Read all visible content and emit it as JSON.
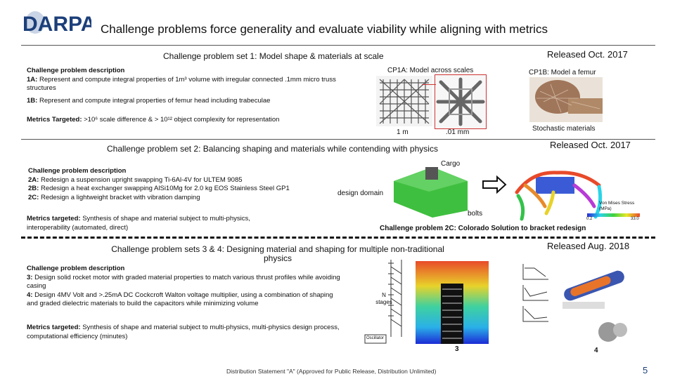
{
  "header": {
    "logo_text": "DARPA",
    "title": "Challenge problems force generality and evaluate viability while aligning with metrics"
  },
  "set1": {
    "heading": "Challenge problem set 1: Model shape & materials at scale",
    "released": "Released Oct. 2017",
    "desc_label": "Challenge problem description",
    "item_1a_label": "1A:",
    "item_1a_text": "Represent and compute integral properties of 1m³ volume with irregular connected .1mm micro truss structures",
    "item_1b_label": "1B:",
    "item_1b_text": "Represent and compute integral properties of femur head including trabeculae",
    "metrics_label": "Metrics Targeted:",
    "metrics_text": ">10⁶ scale difference & > 10¹² object complexity for representation",
    "cp1a_caption": "CP1A: Model across scales",
    "cp1b_caption": "CP1B: Model a femur",
    "scale_1m": "1 m",
    "scale_01mm": ".01 mm",
    "stochastic": "Stochastic materials"
  },
  "set2": {
    "heading": "Challenge problem set 2: Balancing shaping and materials while contending with physics",
    "released": "Released Oct. 2017",
    "desc_label": "Challenge problem description",
    "item_2a_label": "2A:",
    "item_2a_text": "Redesign a suspension upright swapping Ti-6Al-4V for ULTEM 9085",
    "item_2b_label": "2B:",
    "item_2b_text": "Redesign a heat exchanger swapping AlSi10Mg for 2.0 kg EOS Stainless Steel GP1",
    "item_2c_label": "2C:",
    "item_2c_text": "Redesign a lightweight bracket with vibration damping",
    "metrics_label": "Metrics targeted:",
    "metrics_text": "Synthesis of shape and material subject to multi-physics, interoperability (automated, direct)",
    "cargo": "Cargo",
    "design_domain": "design domain",
    "bolts": "bolts",
    "cp2c_caption": "Challenge problem 2C: Colorado Solution to bracket redesign",
    "von_mises": "Von Mises Stress (MPa)",
    "cbar_min": "0.2",
    "cbar_max": "33.0"
  },
  "set34": {
    "heading": "Challenge problem sets 3 & 4: Designing material and shaping for multiple non-traditional physics",
    "released": "Released Aug. 2018",
    "desc_label": "Challenge problem description",
    "item_3_label": "3:",
    "item_3_text": "Design solid rocket motor with graded material properties to match various thrust profiles while avoiding casing",
    "item_4_label": "4:",
    "item_4_text": "Design 4MV Volt and >.25mA DC Cockcroft Walton voltage multiplier, using a combination of shaping and graded dielectric materials to build the capacitors while minimizing volume",
    "metrics_label": "Metrics targeted:",
    "metrics_text": "Synthesis of shape and material subject to multi-physics, multi-physics design process, computational efficiency (minutes)",
    "n_stages": "N stages",
    "oscillator": "Oscillator",
    "label_3": "3",
    "label_4": "4"
  },
  "footer": {
    "distribution": "Distribution Statement \"A\" (Approved for Public Release, Distribution Unlimited)",
    "page": "5"
  },
  "colors": {
    "darpa_blue": "#1c3f7a",
    "green_part": "#3fbf3f",
    "cargo_blue": "#3b5bd6"
  }
}
